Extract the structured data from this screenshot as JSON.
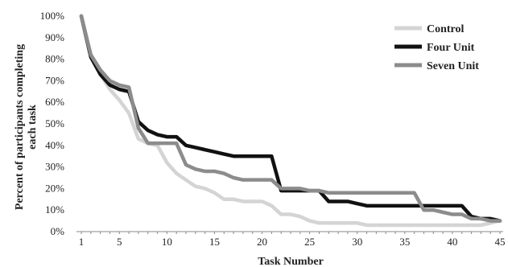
{
  "chart_data": {
    "type": "line",
    "title": "",
    "xlabel": "Task Number",
    "ylabel_lines": [
      "Percent of participants completing",
      "each task"
    ],
    "xlim": [
      1,
      45
    ],
    "ylim": [
      0,
      100
    ],
    "x_ticks": [
      1,
      5,
      10,
      15,
      20,
      25,
      30,
      35,
      40,
      45
    ],
    "y_ticks": [
      0,
      10,
      20,
      30,
      40,
      50,
      60,
      70,
      80,
      90,
      100
    ],
    "y_tick_labels": [
      "0%",
      "10%",
      "20%",
      "30%",
      "40%",
      "50%",
      "60%",
      "70%",
      "80%",
      "90%",
      "100%"
    ],
    "grid": false,
    "legend_position": "top-right",
    "x": [
      1,
      2,
      3,
      4,
      5,
      6,
      7,
      8,
      9,
      10,
      11,
      12,
      13,
      14,
      15,
      16,
      17,
      18,
      19,
      20,
      21,
      22,
      23,
      24,
      25,
      26,
      27,
      28,
      29,
      30,
      31,
      32,
      33,
      34,
      35,
      36,
      37,
      38,
      39,
      40,
      41,
      42,
      43,
      44,
      45
    ],
    "series": [
      {
        "name": "Control",
        "color": "#d4d4d4",
        "values": [
          100,
          82,
          73,
          66,
          61,
          55,
          43,
          41,
          40,
          32,
          27,
          24,
          21,
          20,
          18,
          15,
          15,
          14,
          14,
          14,
          12,
          8,
          8,
          7,
          5,
          4,
          4,
          4,
          4,
          4,
          3,
          3,
          3,
          3,
          3,
          3,
          3,
          3,
          3,
          3,
          3,
          3,
          3,
          4,
          5
        ]
      },
      {
        "name": "Four Unit",
        "color": "#111111",
        "values": [
          100,
          81,
          73,
          68,
          66,
          65,
          51,
          47,
          45,
          44,
          44,
          40,
          39,
          38,
          37,
          36,
          35,
          35,
          35,
          35,
          35,
          19,
          19,
          19,
          19,
          19,
          14,
          14,
          14,
          13,
          12,
          12,
          12,
          12,
          12,
          12,
          12,
          12,
          12,
          12,
          12,
          7,
          6,
          6,
          5
        ]
      },
      {
        "name": "Seven Unit",
        "color": "#8c8c8c",
        "values": [
          100,
          82,
          75,
          70,
          68,
          67,
          48,
          41,
          41,
          41,
          41,
          31,
          29,
          28,
          28,
          27,
          25,
          24,
          24,
          24,
          24,
          20,
          20,
          20,
          19,
          19,
          18,
          18,
          18,
          18,
          18,
          18,
          18,
          18,
          18,
          18,
          10,
          10,
          9,
          8,
          8,
          6,
          6,
          5,
          5
        ]
      }
    ]
  }
}
